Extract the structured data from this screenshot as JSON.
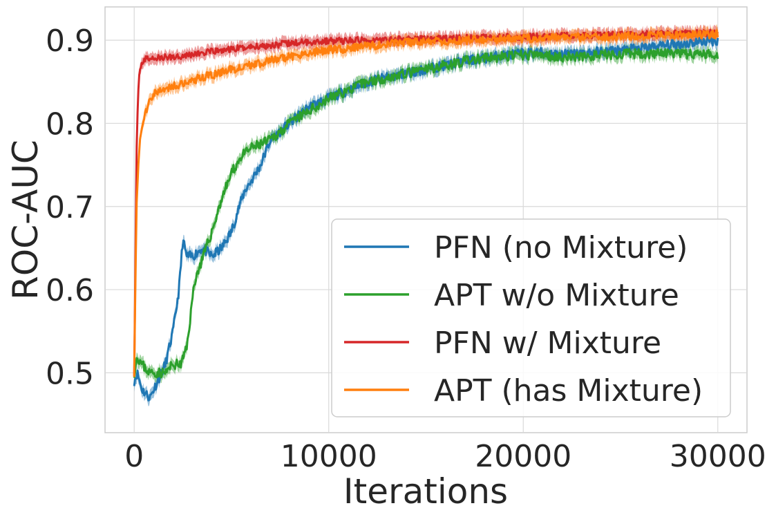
{
  "chart_data": {
    "type": "line",
    "xlabel": "Iterations",
    "ylabel": "ROC-AUC",
    "xlim": [
      -1500,
      31500
    ],
    "ylim": [
      0.428,
      0.94
    ],
    "x_ticks": [
      0,
      10000,
      20000,
      30000
    ],
    "x_tick_labels": [
      "0",
      "10000",
      "20000",
      "30000"
    ],
    "y_ticks": [
      0.5,
      0.6,
      0.7,
      0.8,
      0.9
    ],
    "y_tick_labels": [
      "0.5",
      "0.6",
      "0.7",
      "0.8",
      "0.9"
    ],
    "grid": true,
    "legend_position": "lower-right",
    "series": [
      {
        "name": "PFN (no Mixture)",
        "color": "#1f77b4",
        "x": [
          0,
          150,
          400,
          800,
          1200,
          1600,
          2000,
          2300,
          2500,
          2700,
          3000,
          3500,
          4000,
          4500,
          5000,
          5400,
          5700,
          6000,
          6500,
          7000,
          8000,
          9000,
          10000,
          11000,
          12000,
          13000,
          14000,
          15000,
          16000,
          17000,
          18000,
          19000,
          20000,
          21000,
          22000,
          23000,
          24000,
          25000,
          26000,
          27000,
          28000,
          29000,
          30000
        ],
        "y": [
          0.49,
          0.5,
          0.48,
          0.47,
          0.49,
          0.51,
          0.55,
          0.6,
          0.66,
          0.64,
          0.64,
          0.65,
          0.64,
          0.65,
          0.67,
          0.7,
          0.72,
          0.73,
          0.75,
          0.78,
          0.8,
          0.82,
          0.83,
          0.84,
          0.85,
          0.855,
          0.86,
          0.865,
          0.87,
          0.875,
          0.878,
          0.882,
          0.884,
          0.885,
          0.883,
          0.884,
          0.886,
          0.888,
          0.89,
          0.893,
          0.895,
          0.898,
          0.9
        ]
      },
      {
        "name": "APT w/o Mixture",
        "color": "#2ca02c",
        "x": [
          0,
          150,
          400,
          800,
          1200,
          1600,
          2000,
          2400,
          2700,
          2900,
          3100,
          3400,
          3700,
          4000,
          4500,
          5000,
          5500,
          6000,
          6500,
          7000,
          8000,
          9000,
          10000,
          11000,
          12000,
          13000,
          14000,
          15000,
          16000,
          17000,
          18000,
          19000,
          20000,
          21000,
          22000,
          23000,
          24000,
          25000,
          26000,
          27000,
          28000,
          29000,
          30000
        ],
        "y": [
          0.5,
          0.52,
          0.51,
          0.5,
          0.5,
          0.5,
          0.51,
          0.51,
          0.53,
          0.57,
          0.61,
          0.63,
          0.65,
          0.67,
          0.71,
          0.74,
          0.76,
          0.77,
          0.775,
          0.78,
          0.8,
          0.815,
          0.83,
          0.84,
          0.85,
          0.855,
          0.86,
          0.865,
          0.87,
          0.875,
          0.878,
          0.88,
          0.882,
          0.882,
          0.88,
          0.88,
          0.882,
          0.883,
          0.884,
          0.884,
          0.883,
          0.883,
          0.883
        ]
      },
      {
        "name": "PFN w/ Mixture",
        "color": "#d62728",
        "x": [
          0,
          60,
          120,
          200,
          300,
          450,
          700,
          1000,
          1500,
          2000,
          3000,
          4000,
          5000,
          6000,
          7000,
          8000,
          9000,
          10000,
          12000,
          14000,
          16000,
          18000,
          20000,
          22000,
          24000,
          26000,
          28000,
          30000
        ],
        "y": [
          0.5,
          0.62,
          0.76,
          0.84,
          0.868,
          0.875,
          0.878,
          0.878,
          0.879,
          0.88,
          0.883,
          0.886,
          0.889,
          0.892,
          0.894,
          0.896,
          0.898,
          0.899,
          0.9,
          0.901,
          0.902,
          0.903,
          0.904,
          0.905,
          0.906,
          0.907,
          0.908,
          0.909
        ]
      },
      {
        "name": "APT (has Mixture)",
        "color": "#ff7f0e",
        "x": [
          0,
          60,
          120,
          200,
          300,
          450,
          600,
          800,
          1000,
          1500,
          2000,
          3000,
          4000,
          5000,
          6000,
          7000,
          8000,
          9000,
          10000,
          11000,
          12000,
          13000,
          14000,
          15000,
          16000,
          17000,
          18000,
          20000,
          22000,
          24000,
          26000,
          28000,
          30000
        ],
        "y": [
          0.5,
          0.6,
          0.7,
          0.75,
          0.78,
          0.8,
          0.815,
          0.83,
          0.836,
          0.84,
          0.845,
          0.852,
          0.858,
          0.865,
          0.87,
          0.875,
          0.88,
          0.885,
          0.888,
          0.89,
          0.893,
          0.895,
          0.897,
          0.898,
          0.899,
          0.9,
          0.9,
          0.902,
          0.903,
          0.904,
          0.905,
          0.906,
          0.907
        ]
      }
    ]
  }
}
